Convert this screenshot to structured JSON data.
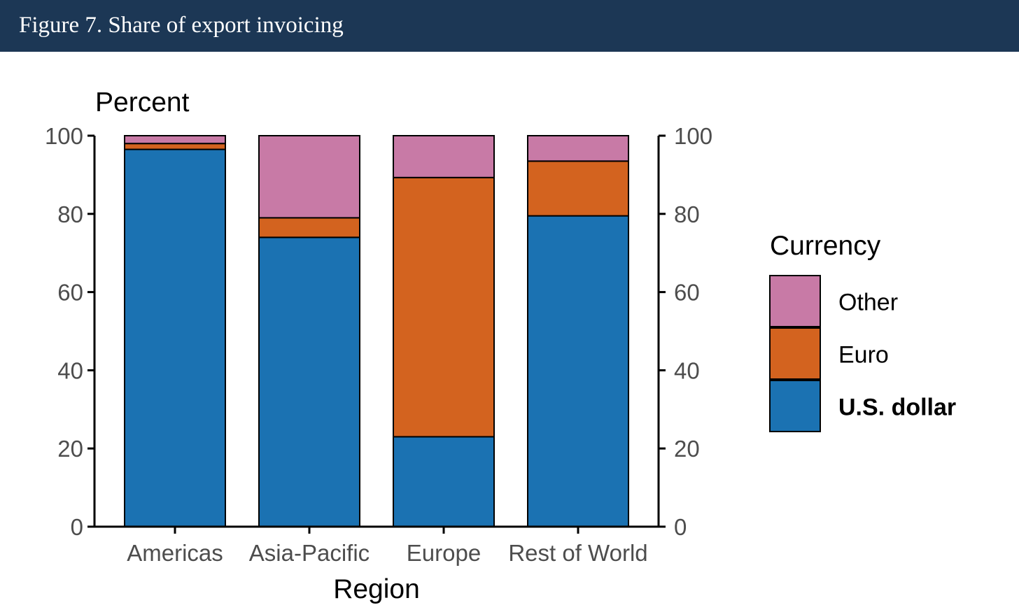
{
  "header": {
    "title": "Figure 7. Share of export invoicing",
    "background": "#1c3755"
  },
  "chart_data": {
    "type": "bar",
    "stacked": true,
    "title": "Figure 7. Share of export invoicing",
    "ylabel": "Percent",
    "xlabel": "Region",
    "ylim": [
      0,
      100
    ],
    "yticks": [
      0,
      20,
      40,
      60,
      80,
      100
    ],
    "secondary_y_axis": true,
    "categories": [
      "Americas",
      "Asia-Pacific",
      "Europe",
      "Rest of World"
    ],
    "series": [
      {
        "name": "U.S. dollar",
        "color": "#1b72b2",
        "values": [
          96.5,
          74,
          23,
          79.5
        ]
      },
      {
        "name": "Euro",
        "color": "#d3631f",
        "values": [
          1.5,
          5,
          66.3,
          14
        ]
      },
      {
        "name": "Other",
        "color": "#c87aa6",
        "values": [
          2,
          21,
          10.7,
          6.5
        ]
      }
    ],
    "legend": {
      "title": "Currency",
      "position": "right",
      "order": [
        "Other",
        "Euro",
        "U.S. dollar"
      ],
      "bold": [
        "U.S. dollar"
      ]
    },
    "grid": false
  }
}
